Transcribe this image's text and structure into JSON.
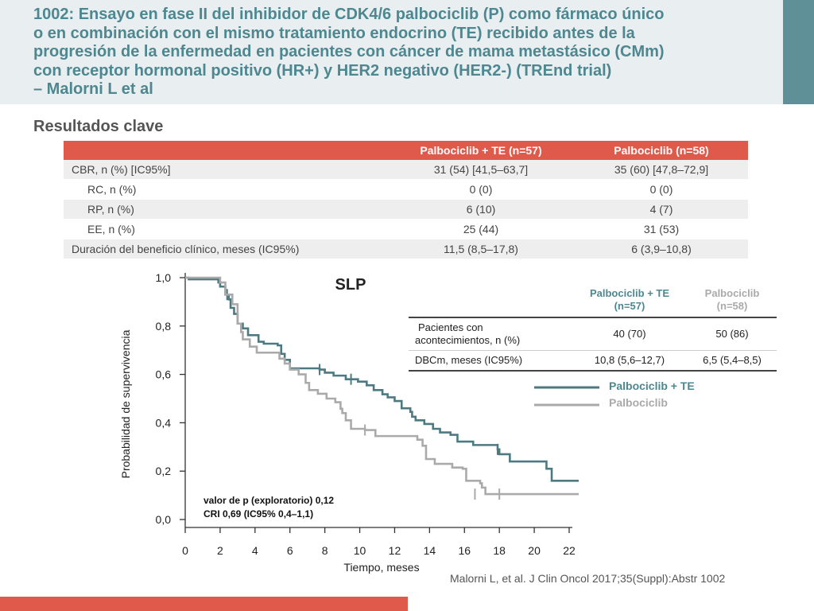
{
  "title": {
    "lines": [
      "1002: Ensayo en fase II del inhibidor de CDK4/6 palbociclib (P) como fármaco único",
      "o en combinación con el mismo tratamiento endocrino (TE) recibido antes de la",
      "progresión de la enfermedad en pacientes con cáncer de mama metastásico (CMm)",
      "con receptor hormonal positivo (HR+) y HER2 negativo (HER2-) (TREnd trial)",
      "– Malorni L et al"
    ]
  },
  "section_title": "Resultados clave",
  "results_table": {
    "headers": [
      "",
      "Palbociclib + TE (n=57)",
      "Palbociclib (n=58)"
    ],
    "rows": [
      {
        "label": "CBR, n (%) [IC95%]",
        "a": "31 (54) [41,5–63,7]",
        "b": "35 (60) [47,8–72,9]"
      },
      {
        "label": "RC, n (%)",
        "a": "0 (0)",
        "b": "0 (0)"
      },
      {
        "label": "RP, n (%)",
        "a": "6 (10)",
        "b": "4 (7)"
      },
      {
        "label": "EE, n (%)",
        "a": "25 (44)",
        "b": "31 (53)"
      },
      {
        "label": "Duración del beneficio clínico, meses (IC95%)",
        "a": "11,5 (8,5–17,8)",
        "b": "6 (3,9–10,8)"
      }
    ]
  },
  "slp_table": {
    "header_a_line1": "Palbociclib + TE",
    "header_a_line2": "(n=57)",
    "header_b_line1": "Palbociclib",
    "header_b_line2": "(n=58)",
    "rows": [
      {
        "label_line1": "Pacientes con",
        "label_line2": "acontecimientos, n (%)",
        "a": "40 (70)",
        "b": "50 (86)"
      },
      {
        "label": "DBCm, meses (IC95%)",
        "a": "10,8 (5,6–12,7)",
        "b": "6,5 (5,4–8,5)"
      }
    ]
  },
  "stats": {
    "line1": "valor de p (exploratorio) 0,12",
    "line2": "CRI 0,69 (IC95% 0,4–1,1)"
  },
  "citation": "Malorni L, et al. J Clin Oncol 2017;35(Suppl):Abstr 1002",
  "colors": {
    "title": "#4d8790",
    "accent_red": "#e05a4b",
    "teal_accent": "#5f8f97",
    "series_combo": "#4d7a80",
    "series_mono": "#aaaaaa"
  },
  "chart_data": {
    "type": "line",
    "subtype": "kaplan-meier step",
    "title": "SLP",
    "xlabel": "Tiempo, meses",
    "ylabel": "Probabilidad de supervivencia",
    "xlim": [
      0,
      22
    ],
    "ylim": [
      0,
      1
    ],
    "x_ticks": [
      {
        "v": 0,
        "label": "0"
      },
      {
        "v": 2,
        "label": "2"
      },
      {
        "v": 4,
        "label": "4"
      },
      {
        "v": 6,
        "label": "6"
      },
      {
        "v": 8,
        "label": "8"
      },
      {
        "v": 10,
        "label": "10"
      },
      {
        "v": 12,
        "label": "12"
      },
      {
        "v": 14,
        "label": "14"
      },
      {
        "v": 16,
        "label": "16"
      },
      {
        "v": 18,
        "label": "18"
      },
      {
        "v": 20,
        "label": "20"
      },
      {
        "v": 22,
        "label": "22"
      }
    ],
    "y_ticks": [
      {
        "v": 0,
        "label": "0,0"
      },
      {
        "v": 0.2,
        "label": "0,2"
      },
      {
        "v": 0.4,
        "label": "0,4"
      },
      {
        "v": 0.6,
        "label": "0,6"
      },
      {
        "v": 0.8,
        "label": "0,8"
      },
      {
        "v": 1.0,
        "label": "1,0"
      }
    ],
    "legend": "right",
    "series": [
      {
        "name": "Palbociclib + TE",
        "color": "#4d7a80",
        "points": [
          [
            0,
            1.0
          ],
          [
            0.2,
            0.993
          ],
          [
            1.0,
            0.993
          ],
          [
            1.9,
            0.98
          ],
          [
            2.0,
            0.963
          ],
          [
            2.3,
            0.93
          ],
          [
            2.5,
            0.91
          ],
          [
            2.6,
            0.875
          ],
          [
            2.8,
            0.85
          ],
          [
            3.0,
            0.81
          ],
          [
            3.3,
            0.79
          ],
          [
            3.6,
            0.762
          ],
          [
            4.2,
            0.735
          ],
          [
            4.5,
            0.727
          ],
          [
            5.2,
            0.727
          ],
          [
            5.3,
            0.72
          ],
          [
            5.5,
            0.685
          ],
          [
            5.7,
            0.66
          ],
          [
            6.0,
            0.625
          ],
          [
            6.8,
            0.625
          ],
          [
            7.7,
            0.62
          ],
          [
            8.0,
            0.607
          ],
          [
            8.5,
            0.595
          ],
          [
            9.2,
            0.58
          ],
          [
            9.9,
            0.57
          ],
          [
            10.4,
            0.555
          ],
          [
            10.8,
            0.535
          ],
          [
            11.3,
            0.518
          ],
          [
            11.6,
            0.505
          ],
          [
            12.0,
            0.49
          ],
          [
            12.4,
            0.46
          ],
          [
            12.9,
            0.445
          ],
          [
            13.0,
            0.425
          ],
          [
            13.2,
            0.41
          ],
          [
            13.7,
            0.395
          ],
          [
            14.2,
            0.375
          ],
          [
            14.6,
            0.36
          ],
          [
            15.2,
            0.35
          ],
          [
            15.6,
            0.322
          ],
          [
            16.5,
            0.308
          ],
          [
            17.9,
            0.29
          ],
          [
            18.0,
            0.27
          ],
          [
            18.6,
            0.24
          ],
          [
            20.7,
            0.21
          ],
          [
            21.0,
            0.16
          ],
          [
            23.0,
            0.16
          ]
        ],
        "censored": [
          [
            2.4,
            0.93
          ],
          [
            7.7,
            0.62
          ],
          [
            9.5,
            0.58
          ],
          [
            17.9,
            0.29
          ]
        ]
      },
      {
        "name": "Palbociclib",
        "color": "#aaaaaa",
        "points": [
          [
            0,
            1.0
          ],
          [
            2.0,
            0.98
          ],
          [
            2.3,
            0.93
          ],
          [
            2.7,
            0.89
          ],
          [
            3.0,
            0.81
          ],
          [
            3.2,
            0.775
          ],
          [
            3.3,
            0.745
          ],
          [
            3.7,
            0.715
          ],
          [
            4.1,
            0.69
          ],
          [
            5.4,
            0.665
          ],
          [
            5.7,
            0.645
          ],
          [
            6.0,
            0.62
          ],
          [
            6.5,
            0.6
          ],
          [
            6.9,
            0.565
          ],
          [
            7.1,
            0.535
          ],
          [
            7.6,
            0.52
          ],
          [
            8.1,
            0.5
          ],
          [
            8.6,
            0.485
          ],
          [
            8.9,
            0.458
          ],
          [
            9.0,
            0.44
          ],
          [
            9.2,
            0.41
          ],
          [
            9.5,
            0.375
          ],
          [
            10.3,
            0.37
          ],
          [
            10.9,
            0.345
          ],
          [
            13.3,
            0.33
          ],
          [
            13.6,
            0.305
          ],
          [
            13.8,
            0.25
          ],
          [
            14.3,
            0.23
          ],
          [
            15.3,
            0.215
          ],
          [
            15.9,
            0.21
          ],
          [
            16.1,
            0.16
          ],
          [
            16.9,
            0.15
          ],
          [
            17.0,
            0.132
          ],
          [
            17.2,
            0.105
          ],
          [
            23.0,
            0.105
          ]
        ],
        "censored": [
          [
            10.3,
            0.37
          ],
          [
            16.6,
            0.105
          ],
          [
            18.0,
            0.105
          ]
        ]
      }
    ]
  }
}
